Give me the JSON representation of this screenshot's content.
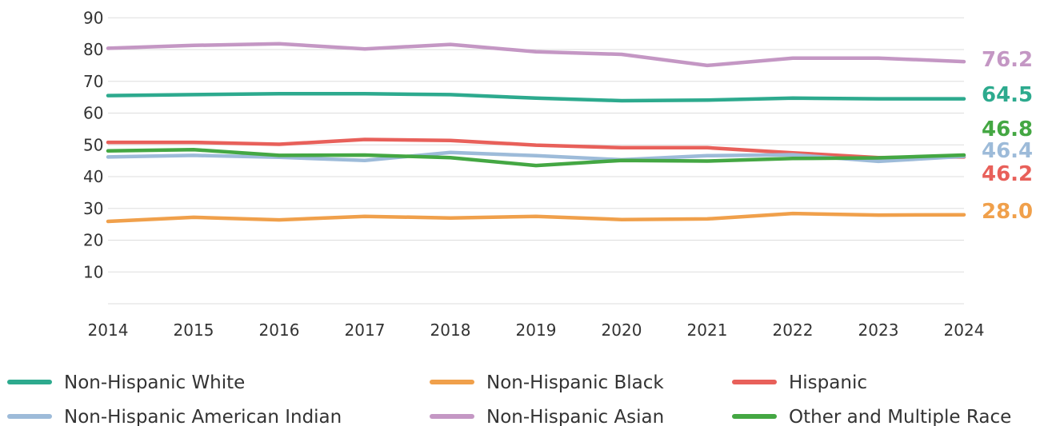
{
  "chart_data": {
    "type": "line",
    "title": "",
    "xlabel": "",
    "ylabel": "",
    "x": [
      "2014",
      "2015",
      "2016",
      "2017",
      "2018",
      "2019",
      "2020",
      "2021",
      "2022",
      "2023",
      "2024"
    ],
    "yticks": [
      "10",
      "20",
      "30",
      "40",
      "50",
      "60",
      "70",
      "80",
      "90"
    ],
    "ylim": [
      0,
      90
    ],
    "grid": "horizontal",
    "legend": "bottom",
    "series": [
      {
        "name": "Non-Hispanic White",
        "color": "#2daa8e",
        "label_color": "#2daa8e",
        "values": [
          65.5,
          65.8,
          66.1,
          66.1,
          65.8,
          64.7,
          63.9,
          64.1,
          64.7,
          64.5,
          64.5
        ],
        "end_label": "64.5"
      },
      {
        "name": "Non-Hispanic Black",
        "color": "#f0a04b",
        "label_color": "#f0a04b",
        "values": [
          25.9,
          27.2,
          26.4,
          27.5,
          27.0,
          27.5,
          26.5,
          26.7,
          28.4,
          27.9,
          28.0
        ],
        "end_label": "28.0"
      },
      {
        "name": "Hispanic",
        "color": "#e8605a",
        "label_color": "#e8605a",
        "values": [
          50.8,
          50.8,
          50.2,
          51.7,
          51.4,
          49.9,
          49.1,
          49.1,
          47.5,
          46.0,
          46.2
        ],
        "end_label": "46.2"
      },
      {
        "name": "Non-Hispanic American Indian",
        "color": "#9dbbd9",
        "label_color": "#9dbbd9",
        "values": [
          46.2,
          46.7,
          46.1,
          45.1,
          47.6,
          46.6,
          45.3,
          46.6,
          46.9,
          44.8,
          46.4
        ],
        "end_label": "46.4"
      },
      {
        "name": "Non-Hispanic Asian",
        "color": "#c497c4",
        "label_color": "#c497c4",
        "values": [
          80.4,
          81.3,
          81.8,
          80.2,
          81.6,
          79.3,
          78.5,
          75.0,
          77.3,
          77.3,
          76.2
        ],
        "end_label": "76.2"
      },
      {
        "name": "Other and Multiple Race",
        "color": "#44a743",
        "label_color": "#44a743",
        "values": [
          48.1,
          48.5,
          46.7,
          46.8,
          46.0,
          43.5,
          45.1,
          44.9,
          45.7,
          45.9,
          46.8
        ],
        "end_label": "46.8"
      }
    ]
  }
}
